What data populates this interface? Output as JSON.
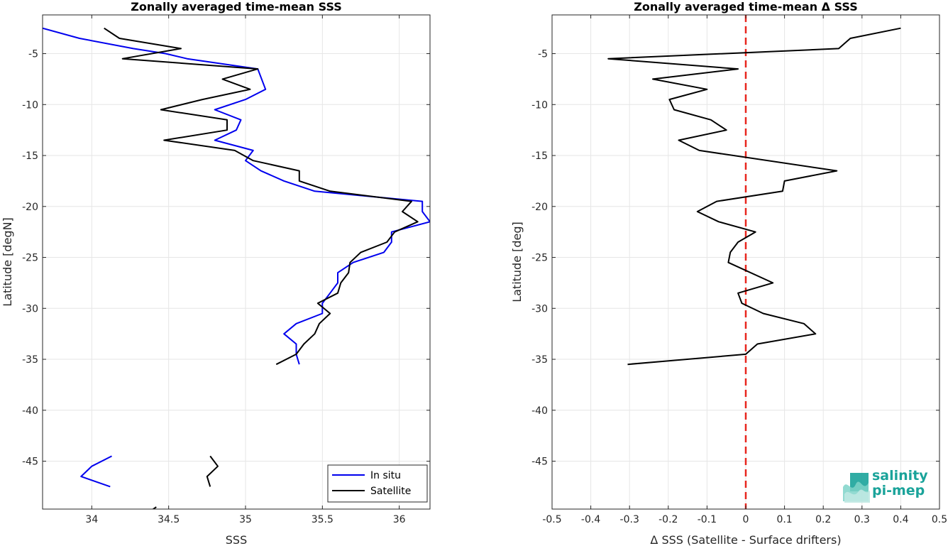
{
  "chart_data": [
    {
      "type": "line",
      "title": "Zonally averaged time-mean SSS",
      "xlabel": "SSS",
      "ylabel": "Latitude [degN]",
      "xlim": [
        33.68,
        36.2
      ],
      "ylim": [
        -49.7,
        -1.2
      ],
      "xticks": [
        34,
        34.5,
        35,
        35.5,
        36
      ],
      "xtick_labels": [
        "34",
        "34.5",
        "35",
        "35.5",
        "36"
      ],
      "yticks": [
        -5,
        -10,
        -15,
        -20,
        -25,
        -30,
        -35,
        -40,
        -45
      ],
      "ytick_labels": [
        "-5",
        "-10",
        "-15",
        "-20",
        "-25",
        "-30",
        "-35",
        "-40",
        "-45"
      ],
      "grid": true,
      "legend_position": "bottom-right",
      "series": [
        {
          "name": "In situ",
          "color": "#0000ee",
          "segments": [
            [
              [
                33.68,
                -2.5
              ],
              [
                33.92,
                -3.5
              ],
              [
                34.27,
                -4.5
              ],
              [
                34.48,
                -5
              ],
              [
                34.62,
                -5.5
              ],
              [
                35.08,
                -6.5
              ],
              [
                35.13,
                -8.5
              ],
              [
                35.0,
                -9.5
              ],
              [
                34.8,
                -10.5
              ],
              [
                34.97,
                -11.5
              ],
              [
                34.94,
                -12.5
              ],
              [
                34.8,
                -13.5
              ],
              [
                35.05,
                -14.5
              ],
              [
                35.0,
                -15.5
              ],
              [
                35.1,
                -16.5
              ],
              [
                35.25,
                -17.5
              ],
              [
                35.45,
                -18.5
              ],
              [
                36.15,
                -19.5
              ],
              [
                36.15,
                -20.5
              ],
              [
                36.2,
                -21.5
              ],
              [
                35.95,
                -22.5
              ],
              [
                35.95,
                -23.5
              ],
              [
                35.9,
                -24.5
              ],
              [
                35.7,
                -25.5
              ],
              [
                35.6,
                -26.5
              ],
              [
                35.6,
                -27.5
              ],
              [
                35.55,
                -28.5
              ],
              [
                35.5,
                -29.5
              ],
              [
                35.5,
                -30.5
              ],
              [
                35.33,
                -31.5
              ],
              [
                35.25,
                -32.5
              ],
              [
                35.33,
                -33.5
              ],
              [
                35.33,
                -34.5
              ],
              [
                35.35,
                -35.5
              ]
            ],
            [
              [
                34.13,
                -44.5
              ],
              [
                34.0,
                -45.5
              ],
              [
                33.93,
                -46.5
              ],
              [
                34.12,
                -47.5
              ]
            ]
          ]
        },
        {
          "name": "Satellite",
          "color": "#000000",
          "segments": [
            [
              [
                34.08,
                -2.5
              ],
              [
                34.18,
                -3.5
              ],
              [
                34.58,
                -4.5
              ],
              [
                34.2,
                -5.5
              ],
              [
                35.08,
                -6.5
              ],
              [
                34.85,
                -7.5
              ],
              [
                35.03,
                -8.5
              ],
              [
                34.72,
                -9.5
              ],
              [
                34.45,
                -10.5
              ],
              [
                34.88,
                -11.5
              ],
              [
                34.88,
                -12.5
              ],
              [
                34.47,
                -13.5
              ],
              [
                34.93,
                -14.5
              ],
              [
                35.05,
                -15.5
              ],
              [
                35.35,
                -16.5
              ],
              [
                35.35,
                -17.5
              ],
              [
                35.55,
                -18.5
              ],
              [
                36.08,
                -19.5
              ],
              [
                36.02,
                -20.5
              ],
              [
                36.12,
                -21.5
              ],
              [
                35.97,
                -22.5
              ],
              [
                35.92,
                -23.5
              ],
              [
                35.75,
                -24.5
              ],
              [
                35.68,
                -25.5
              ],
              [
                35.67,
                -26.5
              ],
              [
                35.62,
                -27.5
              ],
              [
                35.6,
                -28.5
              ],
              [
                35.47,
                -29.5
              ],
              [
                35.55,
                -30.5
              ],
              [
                35.48,
                -31.5
              ],
              [
                35.45,
                -32.5
              ],
              [
                35.38,
                -33.5
              ],
              [
                35.33,
                -34.5
              ],
              [
                35.2,
                -35.5
              ]
            ],
            [
              [
                34.77,
                -44.5
              ],
              [
                34.82,
                -45.5
              ],
              [
                34.75,
                -46.5
              ],
              [
                34.77,
                -47.5
              ]
            ],
            [
              [
                34.38,
                -49.9
              ],
              [
                34.42,
                -49.5
              ]
            ]
          ]
        }
      ]
    },
    {
      "type": "line",
      "title": "Zonally averaged time-mean Δ SSS",
      "xlabel": "Δ SSS (Satellite - Surface drifters)",
      "ylabel": "Latitude [deg]",
      "xlim": [
        -0.5,
        0.5
      ],
      "ylim": [
        -49.7,
        -1.2
      ],
      "xticks": [
        -0.5,
        -0.4,
        -0.3,
        -0.2,
        -0.1,
        0,
        0.1,
        0.2,
        0.3,
        0.4,
        0.5
      ],
      "xtick_labels": [
        "-0.5",
        "-0.4",
        "-0.3",
        "-0.2",
        "-0.1",
        "0",
        "0.1",
        "0.2",
        "0.3",
        "0.4",
        "0.5"
      ],
      "yticks": [
        -5,
        -10,
        -15,
        -20,
        -25,
        -30,
        -35,
        -40,
        -45
      ],
      "ytick_labels": [
        "-5",
        "-10",
        "-15",
        "-20",
        "-25",
        "-30",
        "-35",
        "-40",
        "-45"
      ],
      "grid": true,
      "reference_line": {
        "x": 0,
        "color": "#e8261e",
        "style": "dashed"
      },
      "series": [
        {
          "color": "#000000",
          "segments": [
            [
              [
                0.4,
                -2.5
              ],
              [
                0.27,
                -3.5
              ],
              [
                0.24,
                -4.5
              ],
              [
                -0.355,
                -5.5
              ],
              [
                -0.02,
                -6.5
              ],
              [
                -0.24,
                -7.5
              ],
              [
                -0.1,
                -8.5
              ],
              [
                -0.197,
                -9.5
              ],
              [
                -0.185,
                -10.5
              ],
              [
                -0.09,
                -11.5
              ],
              [
                -0.05,
                -12.5
              ],
              [
                -0.173,
                -13.5
              ],
              [
                -0.12,
                -14.5
              ],
              [
                0.235,
                -16.5
              ],
              [
                0.1,
                -17.5
              ],
              [
                0.095,
                -18.5
              ],
              [
                -0.075,
                -19.5
              ],
              [
                -0.125,
                -20.5
              ],
              [
                -0.07,
                -21.5
              ],
              [
                0.025,
                -22.5
              ],
              [
                -0.02,
                -23.5
              ],
              [
                -0.04,
                -24.5
              ],
              [
                -0.045,
                -25.5
              ],
              [
                0.07,
                -27.5
              ],
              [
                -0.02,
                -28.5
              ],
              [
                -0.01,
                -29.5
              ],
              [
                0.045,
                -30.5
              ],
              [
                0.15,
                -31.5
              ],
              [
                0.18,
                -32.5
              ],
              [
                0.03,
                -33.5
              ],
              [
                0.0,
                -34.5
              ],
              [
                -0.305,
                -35.5
              ]
            ]
          ]
        }
      ]
    }
  ],
  "logo": {
    "line1": "salinity",
    "line2": "pi-mep",
    "color": "#1aa39a"
  },
  "legend": {
    "entries": [
      "In situ",
      "Satellite"
    ]
  }
}
